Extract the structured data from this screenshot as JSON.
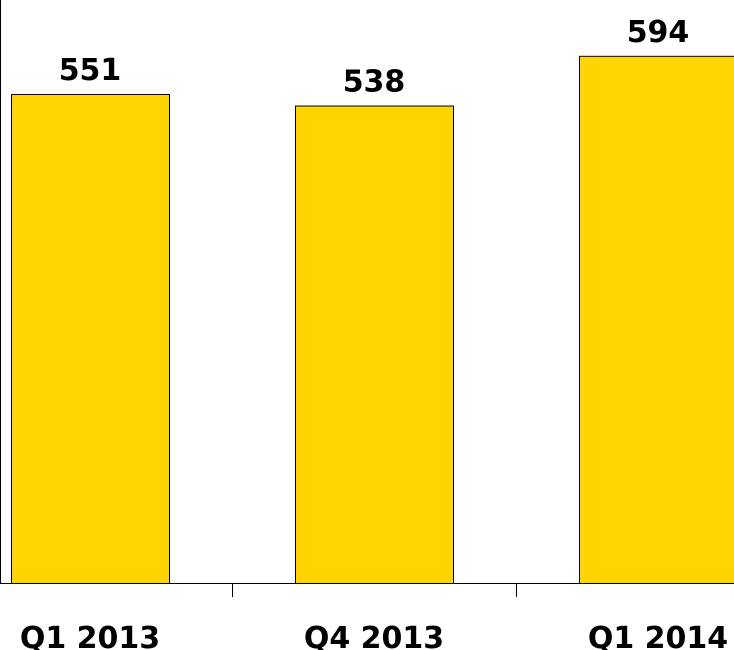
{
  "chart_data": {
    "type": "bar",
    "categories": [
      "Q1 2013",
      "Q4 2013",
      "Q1 2014"
    ],
    "values": [
      551,
      538,
      594
    ],
    "title": "",
    "xlabel": "",
    "ylabel": "",
    "ylim": [
      0,
      600
    ],
    "grid": false,
    "legend": "none",
    "bar_color": "#FFD400",
    "bar_edge_color": "#000000"
  }
}
